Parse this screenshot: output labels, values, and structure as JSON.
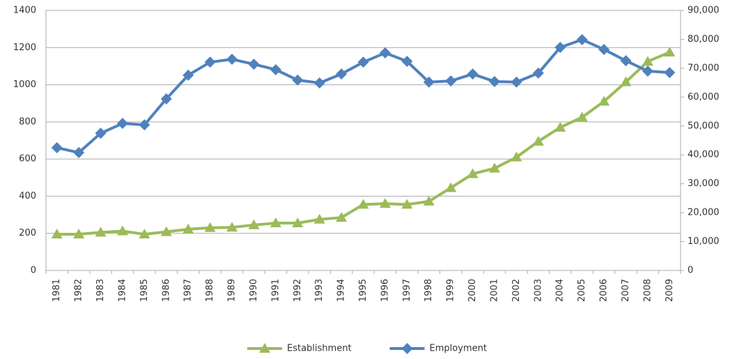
{
  "chart_data": {
    "type": "line",
    "categories": [
      "1981",
      "1982",
      "1983",
      "1984",
      "1985",
      "1986",
      "1987",
      "1988",
      "1989",
      "1990",
      "1991",
      "1992",
      "1993",
      "1994",
      "1995",
      "1996",
      "1997",
      "1998",
      "1999",
      "2000",
      "2001",
      "2002",
      "2003",
      "2004",
      "2005",
      "2006",
      "2007",
      "2008",
      "2009"
    ],
    "series": [
      {
        "name": "Establishment",
        "color": "#9bbb59",
        "marker": "triangle",
        "values": [
          195,
          195,
          205,
          212,
          195,
          208,
          222,
          230,
          232,
          245,
          255,
          255,
          275,
          285,
          355,
          360,
          355,
          372,
          445,
          520,
          550,
          610,
          695,
          770,
          825,
          910,
          1015,
          1125,
          1175
        ]
      },
      {
        "name": "Employment",
        "color": "#4f81bd",
        "marker": "diamond",
        "axis": "y2",
        "values": [
          42500,
          40800,
          47500,
          50900,
          50400,
          59400,
          67600,
          72100,
          73100,
          71400,
          69500,
          65900,
          64900,
          68000,
          72100,
          75300,
          72400,
          65200,
          65600,
          68000,
          65400,
          65200,
          68300,
          77200,
          79900,
          76500,
          72600,
          69000,
          68500
        ]
      }
    ],
    "ylim": [
      0,
      1400
    ],
    "yticks": [
      0,
      200,
      400,
      600,
      800,
      1000,
      1200,
      1400
    ],
    "y2lim": [
      0,
      90000
    ],
    "y2ticks": [
      0,
      {
        "value": 10000,
        "label": "10,000"
      },
      {
        "value": 20000,
        "label": "20,000"
      },
      {
        "value": 30000,
        "label": "30,000"
      },
      {
        "value": 40000,
        "label": "40,000"
      },
      {
        "value": 50000,
        "label": "50,000"
      },
      {
        "value": 60000,
        "label": "60,000"
      },
      {
        "value": 70000,
        "label": "70,000"
      },
      {
        "value": 80000,
        "label": "80,000"
      },
      {
        "value": 90000,
        "label": "90,000"
      }
    ],
    "grid": true,
    "legend": "bottom"
  }
}
